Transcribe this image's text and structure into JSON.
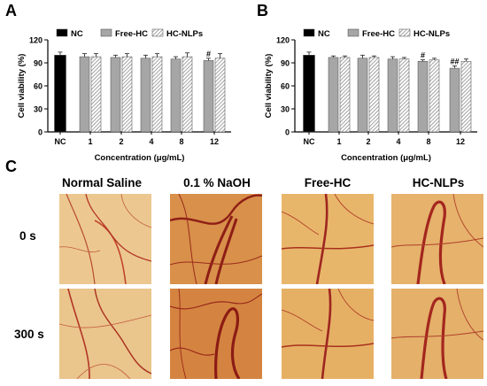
{
  "panels": {
    "a_letter": "A",
    "b_letter": "B",
    "c_letter": "C"
  },
  "legend": [
    "NC",
    "Free-HC",
    "HC-NLPs"
  ],
  "chart_data": [
    {
      "type": "bar",
      "panel": "A",
      "categories": [
        "NC",
        "1",
        "2",
        "4",
        "8",
        "12"
      ],
      "series": [
        {
          "name": "NC",
          "values": [
            100,
            null,
            null,
            null,
            null,
            null
          ],
          "errors": [
            4,
            null,
            null,
            null,
            null,
            null
          ]
        },
        {
          "name": "Free-HC",
          "values": [
            null,
            98,
            97,
            96,
            95,
            93
          ],
          "errors": [
            null,
            4,
            3,
            4,
            3,
            3
          ]
        },
        {
          "name": "HC-NLPs",
          "values": [
            null,
            98,
            98,
            98,
            98,
            96
          ],
          "errors": [
            null,
            4,
            4,
            4,
            5,
            6
          ]
        }
      ],
      "annotations": [
        {
          "category": "12",
          "series": "Free-HC",
          "text": "#"
        }
      ],
      "xlabel": "Concentration (μg/mL)",
      "ylabel": "Cell viability (%)",
      "ylim": [
        0,
        120
      ],
      "yticks": [
        "0",
        "30",
        "60",
        "90",
        "120"
      ]
    },
    {
      "type": "bar",
      "panel": "B",
      "categories": [
        "NC",
        "1",
        "2",
        "4",
        "8",
        "12"
      ],
      "series": [
        {
          "name": "NC",
          "values": [
            100,
            null,
            null,
            null,
            null,
            null
          ],
          "errors": [
            4,
            null,
            null,
            null,
            null,
            null
          ]
        },
        {
          "name": "Free-HC",
          "values": [
            null,
            97,
            96,
            95,
            92,
            83
          ],
          "errors": [
            null,
            2,
            4,
            3,
            2,
            3
          ]
        },
        {
          "name": "HC-NLPs",
          "values": [
            null,
            97,
            97,
            95,
            94,
            92
          ],
          "errors": [
            null,
            2,
            2,
            2,
            2,
            3
          ]
        }
      ],
      "annotations": [
        {
          "category": "8",
          "series": "Free-HC",
          "text": "#"
        },
        {
          "category": "12",
          "series": "Free-HC",
          "text": "##"
        }
      ],
      "xlabel": "Concentration (μg/mL)",
      "ylabel": "Cell viability (%)",
      "ylim": [
        0,
        120
      ],
      "yticks": [
        "0",
        "30",
        "60",
        "90",
        "120"
      ]
    }
  ],
  "images": {
    "columns": [
      "Normal Saline",
      "0.1 % NaOH",
      "Free-HC",
      "HC-NLPs"
    ],
    "rows": [
      "0 s",
      "300 s"
    ]
  },
  "colors": {
    "nc": "#000000",
    "free_hc": "#a6a6a6",
    "hc_nlps_hatch": "#8c8c8c",
    "photo_bg": "#e8b66a",
    "vessel": "#a8241e"
  }
}
